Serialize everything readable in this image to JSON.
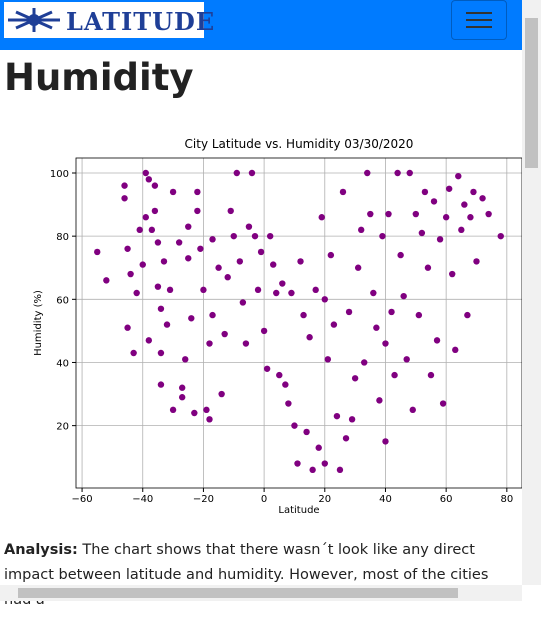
{
  "header": {
    "logo": "LATITUDE"
  },
  "heading": "Humidity",
  "chart_data": {
    "type": "scatter",
    "title": "City Latitude vs. Humidity 03/30/2020",
    "xlabel": "Latitude",
    "ylabel": "Humidity (%)",
    "color": "#800080",
    "grid": true,
    "xlim": [
      -62,
      85
    ],
    "ylim": [
      0.25,
      104.75
    ],
    "xticks": [
      {
        "value": -60,
        "label": "−60"
      },
      {
        "value": -40,
        "label": "−40"
      },
      {
        "value": -20,
        "label": "−20"
      },
      0,
      20,
      40,
      60,
      80
    ],
    "yticks": [
      20,
      40,
      60,
      80,
      100
    ],
    "x": [
      -55,
      -52,
      -46,
      -46,
      -45,
      -45,
      -44,
      -43,
      -42,
      -41,
      -40,
      -39,
      -39,
      -38,
      -38,
      -37,
      -36,
      -36,
      -35,
      -35,
      -34,
      -34,
      -34,
      -33,
      -32,
      -31,
      -30,
      -30,
      -28,
      -27,
      -27,
      -26,
      -25,
      -25,
      -24,
      -23,
      -22,
      -22,
      -21,
      -20,
      -19,
      -18,
      -18,
      -17,
      -17,
      -15,
      -14,
      -13,
      -12,
      -11,
      -10,
      -9,
      -8,
      -7,
      -6,
      -5,
      -4,
      -3,
      -2,
      -1,
      0,
      1,
      2,
      3,
      4,
      5,
      6,
      7,
      8,
      9,
      10,
      11,
      12,
      13,
      14,
      15,
      16,
      17,
      18,
      19,
      20,
      20,
      21,
      22,
      23,
      24,
      25,
      26,
      27,
      28,
      29,
      30,
      31,
      32,
      33,
      34,
      35,
      36,
      37,
      38,
      39,
      40,
      40,
      41,
      42,
      43,
      44,
      45,
      46,
      47,
      48,
      49,
      50,
      51,
      52,
      53,
      54,
      55,
      56,
      57,
      58,
      59,
      60,
      61,
      62,
      63,
      64,
      65,
      66,
      67,
      68,
      69,
      70,
      72,
      74,
      78
    ],
    "values": [
      75,
      66,
      96,
      92,
      76,
      51,
      68,
      43,
      62,
      82,
      71,
      100,
      86,
      98,
      47,
      82,
      96,
      88,
      78,
      64,
      57,
      33,
      43,
      72,
      52,
      63,
      25,
      94,
      78,
      32,
      29,
      41,
      83,
      73,
      54,
      24,
      88,
      94,
      76,
      63,
      25,
      46,
      22,
      79,
      55,
      70,
      30,
      49,
      67,
      88,
      80,
      100,
      72,
      59,
      46,
      83,
      100,
      80,
      63,
      75,
      50,
      38,
      80,
      71,
      62,
      36,
      65,
      33,
      27,
      62,
      20,
      8,
      72,
      55,
      18,
      48,
      6,
      63,
      13,
      86,
      8,
      60,
      41,
      74,
      52,
      23,
      6,
      94,
      16,
      56,
      22,
      35,
      70,
      82,
      40,
      100,
      87,
      62,
      51,
      28,
      80,
      15,
      46,
      87,
      56,
      36,
      100,
      74,
      61,
      41,
      100,
      25,
      87,
      55,
      81,
      94,
      70,
      36,
      91,
      47,
      79,
      27,
      86,
      95,
      68,
      44,
      99,
      82,
      90,
      55,
      86,
      94,
      72,
      92,
      87,
      80
    ]
  },
  "analysis": {
    "label": "Analysis:",
    "text": "The chart shows that there wasn´t look like any direct impact between latitude and humidity. However, most of the cities had a"
  }
}
